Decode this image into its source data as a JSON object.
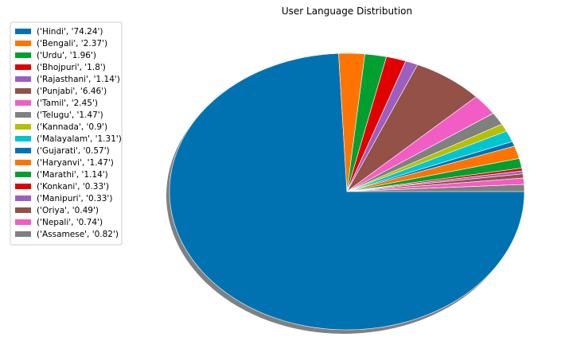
{
  "chart_data": {
    "type": "pie",
    "title": "User Language Distribution",
    "legend_position": "upper-left",
    "shadow": true,
    "start_angle_deg": 0,
    "direction": "clockwise",
    "slices": [
      {
        "label": "('Hindi', '74.24')",
        "value": 74.24,
        "color": "#0072b2"
      },
      {
        "label": "('Bengali', '2.37')",
        "value": 2.37,
        "color": "#ff7400"
      },
      {
        "label": "('Urdu', '1.96')",
        "value": 1.96,
        "color": "#00a030"
      },
      {
        "label": "('Bhojpuri', '1.8')",
        "value": 1.8,
        "color": "#e00000"
      },
      {
        "label": "('Rajasthani', '1.14')",
        "value": 1.14,
        "color": "#9c5fc0"
      },
      {
        "label": "('Punjabi', '6.46')",
        "value": 6.46,
        "color": "#935148"
      },
      {
        "label": "('Tamil', '2.45')",
        "value": 2.45,
        "color": "#f25cc5"
      },
      {
        "label": "('Telugu', '1.47')",
        "value": 1.47,
        "color": "#808080"
      },
      {
        "label": "('Kannada', '0.9')",
        "value": 0.9,
        "color": "#b5c000"
      },
      {
        "label": "('Malayalam', '1.31')",
        "value": 1.31,
        "color": "#00c5d1"
      },
      {
        "label": "('Gujarati', '0.57')",
        "value": 0.57,
        "color": "#0072b2"
      },
      {
        "label": "('Haryanvi', '1.47')",
        "value": 1.47,
        "color": "#ff7400"
      },
      {
        "label": "('Marathi', '1.14')",
        "value": 1.14,
        "color": "#00a030"
      },
      {
        "label": "('Konkani', '0.33')",
        "value": 0.33,
        "color": "#e00000"
      },
      {
        "label": "('Manipuri', '0.33')",
        "value": 0.33,
        "color": "#9c5fc0"
      },
      {
        "label": "('Oriya', '0.49')",
        "value": 0.49,
        "color": "#935148"
      },
      {
        "label": "('Nepali', '0.74')",
        "value": 0.74,
        "color": "#f25cc5"
      },
      {
        "label": "('Assamese', '0.82')",
        "value": 0.82,
        "color": "#808080"
      }
    ]
  }
}
